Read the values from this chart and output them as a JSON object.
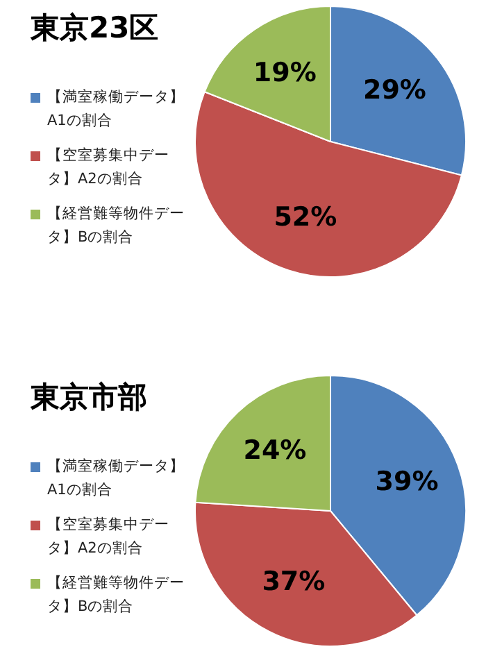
{
  "chart_data": [
    {
      "type": "pie",
      "title": "東京23区",
      "categories": [
        "【満室稼働データ】A1の割合",
        "【空室募集中データ】A2の割合",
        "【経営難等物件データ】Bの割合"
      ],
      "values": [
        29,
        52,
        19
      ],
      "value_labels": [
        "29%",
        "52%",
        "19%"
      ],
      "colors": [
        "#4f81bd",
        "#c0504d",
        "#9bbb59"
      ],
      "legend": "left"
    },
    {
      "type": "pie",
      "title": "東京市部",
      "categories": [
        "【満室稼働データ】A1の割合",
        "【空室募集中データ】A2の割合",
        "【経営難等物件データ】Bの割合"
      ],
      "values": [
        39,
        37,
        24
      ],
      "value_labels": [
        "39%",
        "37%",
        "24%"
      ],
      "colors": [
        "#4f81bd",
        "#c0504d",
        "#9bbb59"
      ],
      "legend": "left"
    }
  ]
}
